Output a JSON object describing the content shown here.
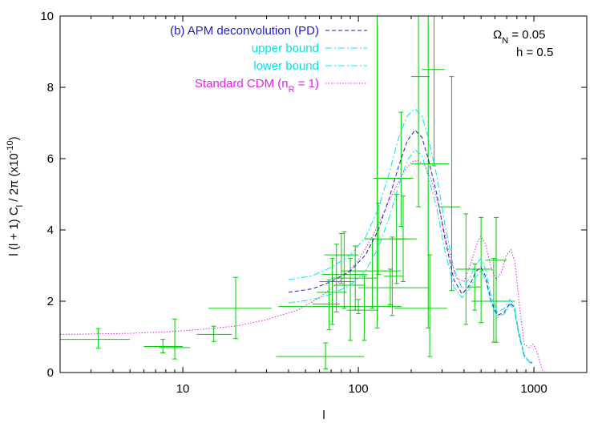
{
  "chart_data": {
    "type": "line",
    "xscale": "log",
    "xlim": [
      2,
      2000
    ],
    "ylim": [
      0,
      10
    ],
    "xlabel": "l",
    "ylabel_html": "l (l + 1) C<tspan baseline-shift='sub' font-size='11'>l</tspan> / 2π  (x10<tspan baseline-shift='super' font-size='11'>-10</tspan>)",
    "ylabel_plain": "l (l + 1) Cl / 2π  (x10-10)",
    "x_ticks": [
      10,
      100,
      1000
    ],
    "x_tick_labels": [
      "10",
      "100",
      "1000"
    ],
    "y_ticks": [
      0,
      2,
      4,
      6,
      8,
      10
    ],
    "y_tick_labels": [
      "0",
      "2",
      "4",
      "6",
      "8",
      "10"
    ],
    "annotation_omega": "Ω",
    "annotation_omega_sub": "N",
    "annotation_omega_value": " = 0.05",
    "annotation_h": "h = 0.5",
    "series": [
      {
        "name": "(b) APM deconvolution (PD)",
        "color": "#1f1fbf",
        "dash": "5,3",
        "points": [
          [
            40,
            2.25
          ],
          [
            55,
            2.35
          ],
          [
            70,
            2.55
          ],
          [
            90,
            2.85
          ],
          [
            110,
            3.3
          ],
          [
            130,
            4.0
          ],
          [
            150,
            4.9
          ],
          [
            170,
            5.8
          ],
          [
            190,
            6.5
          ],
          [
            210,
            6.8
          ],
          [
            230,
            6.6
          ],
          [
            250,
            6.0
          ],
          [
            280,
            5.0
          ],
          [
            310,
            3.8
          ],
          [
            350,
            2.6
          ],
          [
            390,
            2.2
          ],
          [
            430,
            2.45
          ],
          [
            470,
            2.85
          ],
          [
            500,
            2.95
          ],
          [
            530,
            2.7
          ],
          [
            570,
            2.0
          ],
          [
            620,
            1.6
          ],
          [
            680,
            1.7
          ],
          [
            730,
            1.95
          ],
          [
            770,
            1.85
          ],
          [
            820,
            1.1
          ],
          [
            880,
            0.5
          ],
          [
            940,
            0.3
          ],
          [
            980,
            0.28
          ]
        ]
      },
      {
        "name": "upper bound",
        "color": "#00e5e5",
        "dash": "8,3,2,3",
        "points": [
          [
            40,
            2.6
          ],
          [
            55,
            2.72
          ],
          [
            70,
            2.95
          ],
          [
            90,
            3.3
          ],
          [
            110,
            3.8
          ],
          [
            130,
            4.6
          ],
          [
            150,
            5.6
          ],
          [
            170,
            6.6
          ],
          [
            190,
            7.2
          ],
          [
            210,
            7.4
          ],
          [
            230,
            7.2
          ],
          [
            250,
            6.6
          ],
          [
            280,
            5.5
          ],
          [
            310,
            4.2
          ],
          [
            350,
            2.9
          ],
          [
            390,
            2.35
          ],
          [
            430,
            2.65
          ],
          [
            470,
            3.05
          ],
          [
            500,
            3.2
          ],
          [
            530,
            2.9
          ],
          [
            570,
            2.15
          ],
          [
            620,
            1.7
          ],
          [
            680,
            1.8
          ],
          [
            730,
            2.05
          ],
          [
            770,
            1.9
          ],
          [
            820,
            1.15
          ],
          [
            880,
            0.5
          ],
          [
            940,
            0.3
          ],
          [
            980,
            0.28
          ]
        ]
      },
      {
        "name": "lower bound",
        "color": "#00e5e5",
        "dash": "8,3,2,3",
        "points": [
          [
            40,
            1.95
          ],
          [
            55,
            2.05
          ],
          [
            70,
            2.2
          ],
          [
            90,
            2.45
          ],
          [
            110,
            2.85
          ],
          [
            130,
            3.5
          ],
          [
            150,
            4.35
          ],
          [
            170,
            5.25
          ],
          [
            190,
            5.95
          ],
          [
            210,
            6.25
          ],
          [
            230,
            6.1
          ],
          [
            250,
            5.5
          ],
          [
            280,
            4.6
          ],
          [
            310,
            3.45
          ],
          [
            350,
            2.4
          ],
          [
            390,
            2.1
          ],
          [
            430,
            2.35
          ],
          [
            470,
            2.7
          ],
          [
            500,
            2.85
          ],
          [
            530,
            2.6
          ],
          [
            570,
            1.95
          ],
          [
            620,
            1.55
          ],
          [
            680,
            1.65
          ],
          [
            730,
            1.9
          ],
          [
            770,
            1.8
          ],
          [
            820,
            1.05
          ],
          [
            880,
            0.45
          ],
          [
            940,
            0.28
          ],
          [
            980,
            0.26
          ]
        ]
      },
      {
        "name": "Standard CDM (n",
        "name_sub": "R",
        "name_tail": " = 1)",
        "color": "#e520e5",
        "dash": "1.5,2",
        "points": [
          [
            2,
            1.07
          ],
          [
            3,
            1.08
          ],
          [
            5,
            1.1
          ],
          [
            8,
            1.14
          ],
          [
            12,
            1.2
          ],
          [
            20,
            1.3
          ],
          [
            30,
            1.48
          ],
          [
            45,
            1.75
          ],
          [
            60,
            2.1
          ],
          [
            80,
            2.6
          ],
          [
            100,
            3.15
          ],
          [
            120,
            3.8
          ],
          [
            140,
            4.5
          ],
          [
            160,
            5.1
          ],
          [
            180,
            5.6
          ],
          [
            200,
            5.9
          ],
          [
            220,
            5.95
          ],
          [
            240,
            5.8
          ],
          [
            260,
            5.4
          ],
          [
            290,
            4.6
          ],
          [
            320,
            3.6
          ],
          [
            360,
            2.65
          ],
          [
            400,
            2.55
          ],
          [
            440,
            3.1
          ],
          [
            480,
            3.7
          ],
          [
            500,
            3.82
          ],
          [
            530,
            3.6
          ],
          [
            570,
            2.95
          ],
          [
            610,
            2.6
          ],
          [
            650,
            2.8
          ],
          [
            700,
            3.3
          ],
          [
            740,
            3.45
          ],
          [
            780,
            3.1
          ],
          [
            830,
            1.8
          ],
          [
            880,
            0.8
          ],
          [
            940,
            0.7
          ],
          [
            990,
            0.8
          ],
          [
            1040,
            0.6
          ],
          [
            1090,
            0.25
          ],
          [
            1130,
            0.0
          ]
        ]
      }
    ],
    "data_points": [
      {
        "x": 3.3,
        "y": 0.93,
        "xlo": 2,
        "xhi": 5,
        "ylo": 0.68,
        "yhi": 1.23
      },
      {
        "x": 7.7,
        "y": 0.73,
        "xlo": 6,
        "xhi": 10,
        "ylo": 0.55,
        "yhi": 0.93
      },
      {
        "x": 9,
        "y": 0.7,
        "xlo": 7.3,
        "xhi": 11,
        "ylo": 0.38,
        "yhi": 1.5
      },
      {
        "x": 15,
        "y": 1.07,
        "xlo": 12,
        "xhi": 19,
        "ylo": 0.87,
        "yhi": 1.3
      },
      {
        "x": 20,
        "y": 1.8,
        "xlo": 14,
        "xhi": 32,
        "ylo": 0.95,
        "yhi": 2.67
      },
      {
        "x": 65,
        "y": 0.45,
        "xlo": 34,
        "xhi": 108,
        "ylo": 0.1,
        "yhi": 0.83
      },
      {
        "x": 68,
        "y": 1.92,
        "xlo": 55,
        "xhi": 78,
        "ylo": 1.2,
        "yhi": 2.6
      },
      {
        "x": 71,
        "y": 2.25,
        "xlo": 58,
        "xhi": 86,
        "ylo": 1.35,
        "yhi": 3.2
      },
      {
        "x": 75,
        "y": 2.55,
        "xlo": 60,
        "xhi": 95,
        "ylo": 1.7,
        "yhi": 3.6
      },
      {
        "x": 80,
        "y": 3.3,
        "xlo": 64,
        "xhi": 100,
        "ylo": 2.5,
        "yhi": 3.9
      },
      {
        "x": 83,
        "y": 2.75,
        "xlo": 62,
        "xhi": 112,
        "ylo": 1.8,
        "yhi": 3.95
      },
      {
        "x": 90,
        "y": 2.45,
        "xlo": 73,
        "xhi": 108,
        "ylo": 0.9,
        "yhi": 3.2
      },
      {
        "x": 96,
        "y": 2.65,
        "xlo": 70,
        "xhi": 128,
        "ylo": 1.75,
        "yhi": 3.55
      },
      {
        "x": 100,
        "y": 1.85,
        "xlo": 35,
        "xhi": 176,
        "ylo": 1.65,
        "yhi": 2.05
      },
      {
        "x": 108,
        "y": 1.75,
        "xlo": 86,
        "xhi": 130,
        "ylo": 0.9,
        "yhi": 2.7
      },
      {
        "x": 120,
        "y": 2.85,
        "xlo": 80,
        "xhi": 175,
        "ylo": 1.8,
        "yhi": 3.75
      },
      {
        "x": 128,
        "y": 5.45,
        "xlo": 122,
        "xhi": 180,
        "ylo": 1.25,
        "yhi": 10
      },
      {
        "x": 130,
        "y": 3.75,
        "xlo": 108,
        "xhi": 155,
        "ylo": 2.75,
        "yhi": 4.75
      },
      {
        "x": 152,
        "y": 2.38,
        "xlo": 100,
        "xhi": 250,
        "ylo": 1.9,
        "yhi": 2.9
      },
      {
        "x": 156,
        "y": 2.7,
        "xlo": 140,
        "xhi": 180,
        "ylo": 1.6,
        "yhi": 3.8
      },
      {
        "x": 165,
        "y": 3.75,
        "xlo": 150,
        "xhi": 190,
        "ylo": 2.5,
        "yhi": 5.0
      },
      {
        "x": 175,
        "y": 5.45,
        "xlo": 150,
        "xhi": 205,
        "ylo": 4.1,
        "yhi": 7.3
      },
      {
        "x": 180,
        "y": 3.75,
        "xlo": 160,
        "xhi": 215,
        "ylo": 2.55,
        "yhi": 4.95
      },
      {
        "x": 220,
        "y": 8.3,
        "xlo": 200,
        "xhi": 255,
        "ylo": 4.65,
        "yhi": 10
      },
      {
        "x": 250,
        "y": 5.85,
        "xlo": 200,
        "xhi": 330,
        "ylo": 1.25,
        "yhi": 10
      },
      {
        "x": 255,
        "y": 1.8,
        "xlo": 160,
        "xhi": 320,
        "ylo": 0.45,
        "yhi": 3.3
      },
      {
        "x": 270,
        "y": 8.5,
        "xlo": 230,
        "xhi": 310,
        "ylo": 5.8,
        "yhi": 10
      },
      {
        "x": 340,
        "y": 4.65,
        "xlo": 290,
        "xhi": 380,
        "ylo": 2.3,
        "yhi": 8.3
      },
      {
        "x": 410,
        "y": 2.9,
        "xlo": 360,
        "xhi": 470,
        "ylo": 1.35,
        "yhi": 4.45
      },
      {
        "x": 460,
        "y": 2.4,
        "xlo": 420,
        "xhi": 500,
        "ylo": 1.75,
        "yhi": 3.05
      },
      {
        "x": 500,
        "y": 2.9,
        "xlo": 430,
        "xhi": 580,
        "ylo": 1.4,
        "yhi": 4.35
      },
      {
        "x": 590,
        "y": 2.0,
        "xlo": 440,
        "xhi": 780,
        "ylo": 0.85,
        "yhi": 3.2
      },
      {
        "x": 610,
        "y": 3.15,
        "xlo": 530,
        "xhi": 700,
        "ylo": 0.85,
        "yhi": 4.35
      },
      {
        "x": 1000,
        "y": 0.0,
        "xlo": 30,
        "xhi": 1800,
        "ylo": 0.0,
        "yhi": 0.0
      }
    ],
    "point_color": "#00cc00",
    "grid": false,
    "legend_position": "top-left"
  }
}
